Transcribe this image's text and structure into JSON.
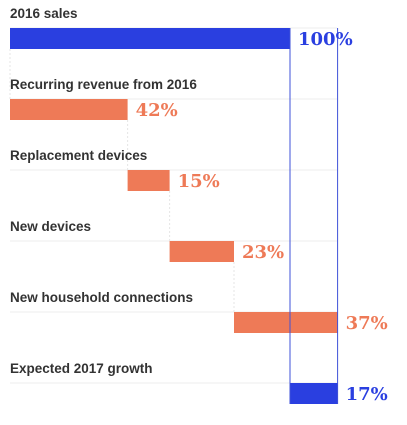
{
  "chart_data": {
    "type": "bar",
    "subtype": "waterfall",
    "title": "",
    "xlabel": "",
    "ylabel": "",
    "categories": [
      "2016 sales",
      "Recurring revenue from 2016",
      "Replacement devices",
      "New devices",
      "New household connections",
      "Expected 2017 growth"
    ],
    "segments": [
      {
        "start": 0,
        "end": 100,
        "label": "100%",
        "kind": "total"
      },
      {
        "start": 0,
        "end": 42,
        "label": "42%",
        "kind": "change"
      },
      {
        "start": 42,
        "end": 57,
        "label": "15%",
        "kind": "change"
      },
      {
        "start": 57,
        "end": 80,
        "label": "23%",
        "kind": "change"
      },
      {
        "start": 80,
        "end": 117,
        "label": "37%",
        "kind": "change"
      },
      {
        "start": 100,
        "end": 117,
        "label": "17%",
        "kind": "total"
      }
    ],
    "xlim": [
      0,
      117
    ],
    "grid": false,
    "legend": "none",
    "colors": {
      "total": "#2a3fe0",
      "change": "#ee7a57",
      "bracket": "#3e51d8",
      "separator": "#eeeeee"
    }
  }
}
